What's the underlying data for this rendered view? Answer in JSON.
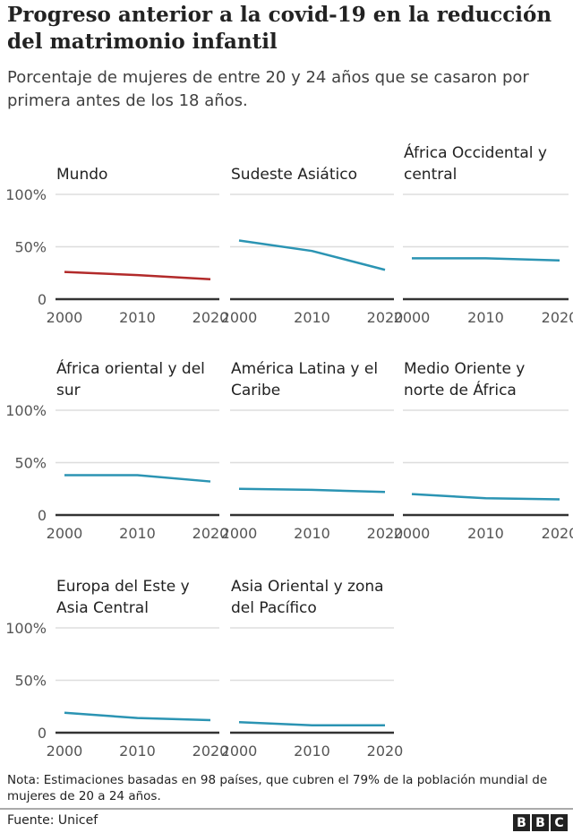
{
  "title": "Progreso anterior a la covid-19 en la reducción del matrimonio infantil",
  "subtitle": "Porcentaje de mujeres de entre 20 y 24 años que se casaron por primera antes de los 18 años.",
  "note": "Nota: Estimaciones basadas en 98 países, que cubren el 79% de la población mundial de mujeres de 20 a 24 años.",
  "source": "Fuente: Unicef",
  "logo": "BBC",
  "colors": {
    "world": "#b22a2a",
    "region": "#2b94b3",
    "axis": "#333333",
    "grid": "#dddddd"
  },
  "chart_data": {
    "type": "line",
    "grid": true,
    "x": [
      2000,
      2010,
      2020
    ],
    "xticks": [
      "2000",
      "2010",
      "2020"
    ],
    "yticks": [
      "0",
      "50%",
      "100%"
    ],
    "ylim": [
      0,
      100
    ],
    "panels": [
      {
        "title": "Mundo",
        "values": [
          26,
          23,
          19
        ],
        "color": "#b22a2a"
      },
      {
        "title": "Sudeste Asiático",
        "values": [
          56,
          46,
          28
        ],
        "color": "#2b94b3"
      },
      {
        "title": "África Occidental y central",
        "values": [
          39,
          39,
          37
        ],
        "color": "#2b94b3"
      },
      {
        "title": "África oriental y del sur",
        "values": [
          38,
          38,
          32
        ],
        "color": "#2b94b3"
      },
      {
        "title": "América Latina y el Caribe",
        "values": [
          25,
          24,
          22
        ],
        "color": "#2b94b3"
      },
      {
        "title": "Medio Oriente y norte de África",
        "values": [
          20,
          16,
          15
        ],
        "color": "#2b94b3"
      },
      {
        "title": "Europa del Este y Asia Central",
        "values": [
          19,
          14,
          12
        ],
        "color": "#2b94b3"
      },
      {
        "title": "Asia Oriental y zona del Pacífico",
        "values": [
          10,
          7,
          7
        ],
        "color": "#2b94b3"
      }
    ]
  }
}
